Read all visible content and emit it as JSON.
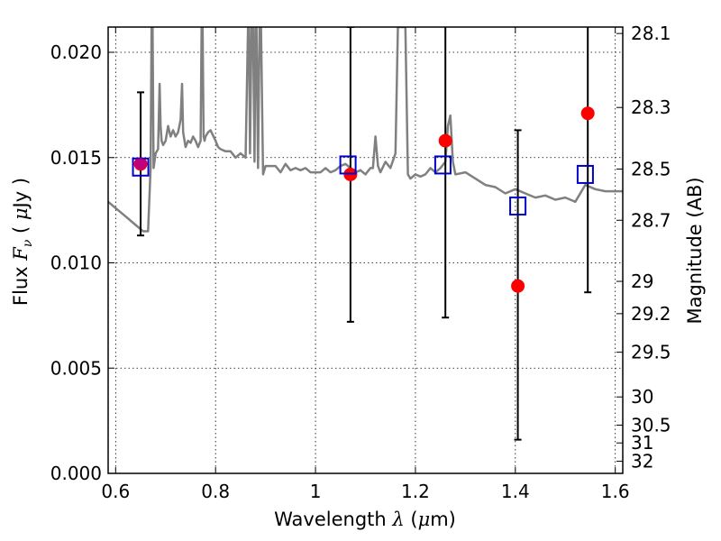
{
  "chart_data": {
    "type": "scatter",
    "title": "",
    "xlabel_parts": [
      "Wavelength ",
      "λ",
      " (",
      "μ",
      "m)"
    ],
    "ylabel_parts": [
      "Flux ",
      "F",
      "ν",
      " ( ",
      "μ",
      "Jy )"
    ],
    "y2label": "Magnitude (AB)",
    "xlim": [
      0.585,
      1.615
    ],
    "ylim": [
      0.0,
      0.0212
    ],
    "x_ticks": [
      0.6,
      0.8,
      1.0,
      1.2,
      1.4,
      1.6
    ],
    "x_tick_labels": [
      "0.6",
      "0.8",
      "1",
      "1.2",
      "1.4",
      "1.6"
    ],
    "y_ticks": [
      0.0,
      0.005,
      0.01,
      0.015,
      0.02
    ],
    "y_tick_labels": [
      "0.000",
      "0.005",
      "0.010",
      "0.015",
      "0.020"
    ],
    "y2_ticks": [
      28.1,
      28.3,
      28.5,
      28.7,
      29,
      29.2,
      29.5,
      30,
      30.5,
      31,
      32
    ],
    "y2_tick_labels": [
      "28.1",
      "28.3",
      "28.5",
      "28.7",
      "29",
      "29.2",
      "29.5",
      "30",
      "30.5",
      "31",
      "32"
    ],
    "grid": true,
    "colors": {
      "model": "#808080",
      "observed": "#ff0000",
      "model_photometry": "#0000cc",
      "errorbar": "#000000",
      "overlap": "#aa00aa"
    },
    "observed": {
      "x": [
        0.65,
        1.07,
        1.26,
        1.405,
        1.545
      ],
      "y": [
        0.0147,
        0.0142,
        0.0158,
        0.0089,
        0.0171
      ],
      "yerr_low": [
        0.0034,
        0.007,
        0.0084,
        0.0073,
        0.0085
      ],
      "yerr_high": [
        0.0034,
        0.007,
        0.0084,
        0.0074,
        0.0085
      ]
    },
    "model_photometry": {
      "x": [
        0.65,
        1.065,
        1.255,
        1.405,
        1.54
      ],
      "y": [
        0.01455,
        0.01465,
        0.01465,
        0.0127,
        0.0142
      ]
    },
    "model_spectrum": {
      "x": [
        0.585,
        0.6,
        0.62,
        0.64,
        0.655,
        0.665,
        0.67,
        0.672,
        0.674,
        0.676,
        0.68,
        0.685,
        0.688,
        0.69,
        0.692,
        0.695,
        0.7,
        0.705,
        0.71,
        0.715,
        0.72,
        0.725,
        0.73,
        0.733,
        0.735,
        0.74,
        0.745,
        0.75,
        0.755,
        0.76,
        0.765,
        0.77,
        0.772,
        0.774,
        0.776,
        0.778,
        0.78,
        0.785,
        0.79,
        0.8,
        0.805,
        0.81,
        0.82,
        0.83,
        0.84,
        0.85,
        0.86,
        0.865,
        0.867,
        0.869,
        0.872,
        0.875,
        0.878,
        0.88,
        0.882,
        0.885,
        0.888,
        0.891,
        0.895,
        0.9,
        0.91,
        0.92,
        0.93,
        0.94,
        0.95,
        0.96,
        0.97,
        0.98,
        0.99,
        1.0,
        1.01,
        1.02,
        1.03,
        1.04,
        1.05,
        1.06,
        1.07,
        1.08,
        1.09,
        1.1,
        1.11,
        1.115,
        1.12,
        1.125,
        1.13,
        1.14,
        1.15,
        1.16,
        1.165,
        1.17,
        1.175,
        1.18,
        1.185,
        1.19,
        1.2,
        1.21,
        1.22,
        1.23,
        1.24,
        1.25,
        1.26,
        1.265,
        1.27,
        1.275,
        1.28,
        1.3,
        1.32,
        1.34,
        1.36,
        1.38,
        1.4,
        1.42,
        1.44,
        1.46,
        1.48,
        1.5,
        1.52,
        1.54,
        1.56,
        1.58,
        1.6,
        1.615
      ],
      "y": [
        0.0129,
        0.0126,
        0.0122,
        0.0118,
        0.0115,
        0.0115,
        0.0145,
        0.0212,
        0.0212,
        0.0145,
        0.0152,
        0.0154,
        0.0185,
        0.0165,
        0.0158,
        0.0156,
        0.0158,
        0.0165,
        0.016,
        0.0163,
        0.016,
        0.0162,
        0.0168,
        0.0185,
        0.0162,
        0.0155,
        0.0158,
        0.0157,
        0.016,
        0.0158,
        0.0155,
        0.0158,
        0.0212,
        0.0212,
        0.016,
        0.0158,
        0.016,
        0.0162,
        0.0163,
        0.0158,
        0.0155,
        0.0154,
        0.0153,
        0.0153,
        0.015,
        0.0152,
        0.015,
        0.0212,
        0.0212,
        0.0152,
        0.0212,
        0.0212,
        0.0148,
        0.0212,
        0.0212,
        0.0145,
        0.0212,
        0.0212,
        0.0142,
        0.0146,
        0.0146,
        0.0146,
        0.0143,
        0.0147,
        0.0144,
        0.0145,
        0.0144,
        0.0145,
        0.0143,
        0.0143,
        0.0143,
        0.0145,
        0.0143,
        0.0144,
        0.0146,
        0.0147,
        0.0145,
        0.0143,
        0.0144,
        0.0142,
        0.0145,
        0.0145,
        0.016,
        0.0146,
        0.0143,
        0.0148,
        0.0145,
        0.0152,
        0.0212,
        0.0212,
        0.0212,
        0.0212,
        0.0142,
        0.014,
        0.0142,
        0.0141,
        0.0142,
        0.0145,
        0.0143,
        0.0145,
        0.0148,
        0.0165,
        0.017,
        0.0148,
        0.0142,
        0.0143,
        0.014,
        0.0137,
        0.0136,
        0.0133,
        0.0135,
        0.0133,
        0.0131,
        0.0132,
        0.013,
        0.0131,
        0.0129,
        0.0137,
        0.0135,
        0.0134,
        0.0134,
        0.0134
      ]
    }
  }
}
